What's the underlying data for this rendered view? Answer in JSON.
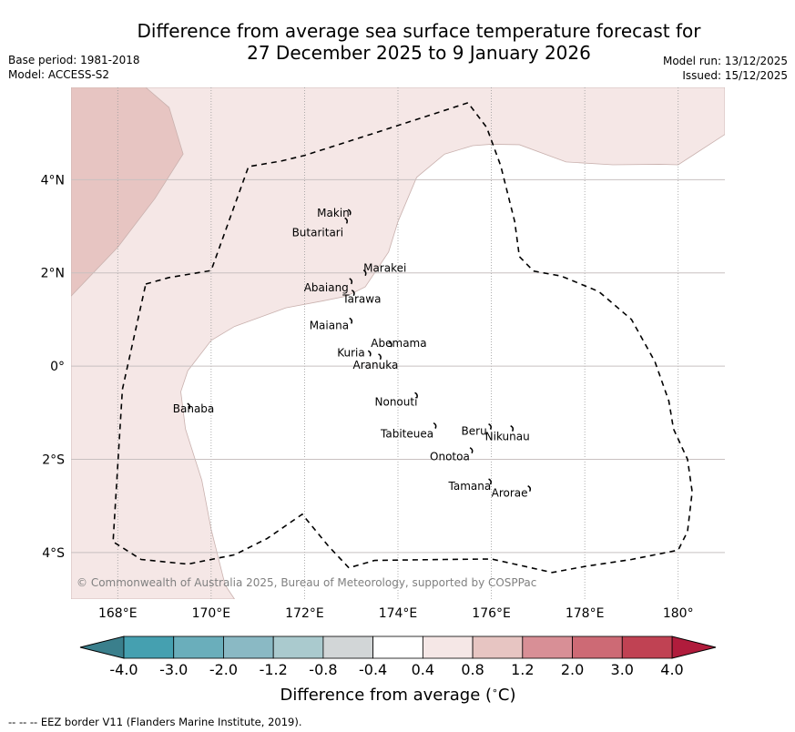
{
  "header": {
    "title_line1": "Difference from average sea surface temperature forecast for",
    "title_line2": "27 December 2025 to 9 January 2026",
    "base_period": "Base period: 1981-2018",
    "model": "Model: ACCESS-S2",
    "model_run": "Model run: 13/12/2025",
    "issued": "Issued: 15/12/2025"
  },
  "chart_data": {
    "type": "heatmap",
    "title": "Difference from average sea surface temperature forecast for 27 December 2025 to 9 January 2026",
    "extent": {
      "lon": [
        167.0,
        181.0
      ],
      "lat": [
        -5.0,
        5.98
      ]
    },
    "x_ticks": [
      {
        "value": 168,
        "label": "168°E"
      },
      {
        "value": 170,
        "label": "170°E"
      },
      {
        "value": 172,
        "label": "172°E"
      },
      {
        "value": 174,
        "label": "174°E"
      },
      {
        "value": 176,
        "label": "176°E"
      },
      {
        "value": 178,
        "label": "178°E"
      },
      {
        "value": 180,
        "label": "180°"
      }
    ],
    "y_ticks": [
      {
        "value": 4,
        "label": "4°N"
      },
      {
        "value": 2,
        "label": "2°N"
      },
      {
        "value": 0,
        "label": "0°"
      },
      {
        "value": -2,
        "label": "2°S"
      },
      {
        "value": -4,
        "label": "4°S"
      }
    ],
    "grid": true,
    "anomaly_regions": [
      {
        "name": "anomaly-0.4-to-0.8",
        "range": "0.4 to 0.8",
        "color": "#f5e7e6",
        "polygon": [
          [
            167.0,
            5.98
          ],
          [
            181.0,
            5.98
          ],
          [
            181.0,
            4.97
          ],
          [
            180.0,
            4.32
          ],
          [
            179.6,
            4.33
          ],
          [
            178.6,
            4.32
          ],
          [
            177.6,
            4.38
          ],
          [
            176.6,
            4.75
          ],
          [
            176.0,
            4.76
          ],
          [
            175.6,
            4.73
          ],
          [
            175.0,
            4.55
          ],
          [
            174.4,
            4.05
          ],
          [
            174.0,
            3.1
          ],
          [
            173.8,
            2.45
          ],
          [
            173.3,
            1.7
          ],
          [
            172.9,
            1.5
          ],
          [
            172.4,
            1.4
          ],
          [
            171.6,
            1.25
          ],
          [
            170.5,
            0.85
          ],
          [
            170.0,
            0.55
          ],
          [
            169.5,
            -0.1
          ],
          [
            169.35,
            -0.55
          ],
          [
            169.45,
            -1.35
          ],
          [
            169.8,
            -2.45
          ],
          [
            170.0,
            -3.5
          ],
          [
            170.3,
            -4.7
          ],
          [
            170.5,
            -5.0
          ],
          [
            167.0,
            -5.0
          ]
        ]
      },
      {
        "name": "anomaly-0.8-to-1.2",
        "range": "0.8 to 1.2",
        "color": "#e7c5c2",
        "polygon": [
          [
            167.0,
            5.98
          ],
          [
            168.6,
            5.98
          ],
          [
            169.1,
            5.55
          ],
          [
            169.4,
            4.55
          ],
          [
            168.8,
            3.6
          ],
          [
            168.0,
            2.55
          ],
          [
            167.0,
            1.5
          ]
        ]
      }
    ],
    "eez_border": [
      [
        168.6,
        1.76
      ],
      [
        169.1,
        1.9
      ],
      [
        170.0,
        2.05
      ],
      [
        170.8,
        4.28
      ],
      [
        171.5,
        4.4
      ],
      [
        172.0,
        4.52
      ],
      [
        173.5,
        5.0
      ],
      [
        175.5,
        5.65
      ],
      [
        175.9,
        5.12
      ],
      [
        176.2,
        4.3
      ],
      [
        176.5,
        3.1
      ],
      [
        176.6,
        2.35
      ],
      [
        176.9,
        2.04
      ],
      [
        177.5,
        1.93
      ],
      [
        178.3,
        1.6
      ],
      [
        179.0,
        1.0
      ],
      [
        179.5,
        0.1
      ],
      [
        179.8,
        -0.75
      ],
      [
        179.9,
        -1.35
      ],
      [
        180.2,
        -2.0
      ],
      [
        180.3,
        -2.7
      ],
      [
        180.2,
        -3.55
      ],
      [
        180.0,
        -3.95
      ],
      [
        179.0,
        -4.15
      ],
      [
        178.0,
        -4.3
      ],
      [
        177.3,
        -4.43
      ],
      [
        176.5,
        -4.25
      ],
      [
        176.0,
        -4.14
      ],
      [
        175.0,
        -4.15
      ],
      [
        173.5,
        -4.17
      ],
      [
        172.95,
        -4.33
      ],
      [
        172.5,
        -3.85
      ],
      [
        171.95,
        -3.18
      ],
      [
        171.2,
        -3.7
      ],
      [
        170.5,
        -4.05
      ],
      [
        169.5,
        -4.25
      ],
      [
        168.5,
        -4.15
      ],
      [
        167.9,
        -3.77
      ],
      [
        168.1,
        -0.5
      ],
      [
        168.6,
        1.76
      ]
    ],
    "islands": [
      {
        "name": "Makin",
        "lon": 172.97,
        "lat": 3.28
      },
      {
        "name": "Butaritari",
        "lon": 172.9,
        "lat": 3.1
      },
      {
        "name": "Marakei",
        "lon": 173.3,
        "lat": 1.98
      },
      {
        "name": "Abaiang",
        "lon": 173.0,
        "lat": 1.8
      },
      {
        "name": "Tarawa",
        "lon": 173.05,
        "lat": 1.55
      },
      {
        "name": "Maiana",
        "lon": 173.0,
        "lat": 0.95
      },
      {
        "name": "Abemama",
        "lon": 173.85,
        "lat": 0.45
      },
      {
        "name": "Kuria",
        "lon": 173.4,
        "lat": 0.25
      },
      {
        "name": "Aranuka",
        "lon": 173.62,
        "lat": 0.18
      },
      {
        "name": "Banaba",
        "lon": 169.53,
        "lat": -0.88
      },
      {
        "name": "Nonouti",
        "lon": 174.4,
        "lat": -0.65
      },
      {
        "name": "Tabiteuea",
        "lon": 174.8,
        "lat": -1.3
      },
      {
        "name": "Beru",
        "lon": 175.98,
        "lat": -1.32
      },
      {
        "name": "Nikunau",
        "lon": 176.45,
        "lat": -1.36
      },
      {
        "name": "Onotoa",
        "lon": 175.58,
        "lat": -1.83
      },
      {
        "name": "Tamana",
        "lon": 175.98,
        "lat": -2.5
      },
      {
        "name": "Arorae",
        "lon": 176.82,
        "lat": -2.65
      }
    ],
    "colorbar": {
      "label": "Difference from average (°C)",
      "label_main": "Difference from average (",
      "label_unit": "C)",
      "ticks": [
        "-4.0",
        "-3.0",
        "-2.0",
        "-1.2",
        "-0.8",
        "-0.4",
        "0.4",
        "0.8",
        "1.2",
        "2.0",
        "3.0",
        "4.0"
      ],
      "under_color": "#3a7f8c",
      "over_color": "#b01c3c",
      "colors": [
        "#45a0b0",
        "#6aaebb",
        "#8ab9c4",
        "#aacace",
        "#d2d6d7",
        "#ffffff",
        "#f5e7e6",
        "#e7c5c2",
        "#d88f96",
        "#cd6a75",
        "#c04253"
      ]
    }
  },
  "copyright": "© Commonwealth of Australia 2025, Bureau of Meteorology, supported by COSPPac",
  "footnote": "--  --  -- EEZ border V11 (Flanders Marine Institute, 2019)."
}
